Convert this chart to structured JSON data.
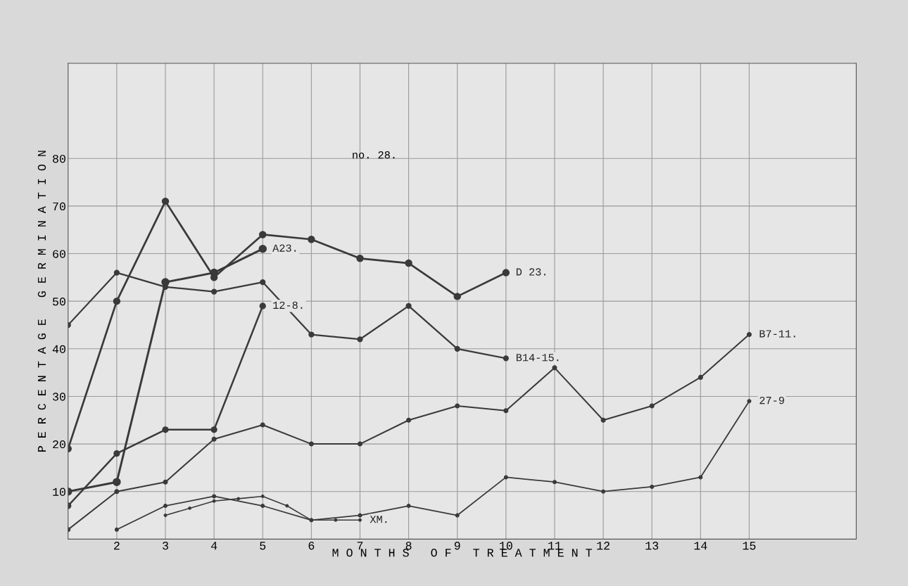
{
  "chart_data": {
    "type": "line",
    "xlabel": "M O N T H S   O F   T R E A T M E N T",
    "ylabel": "P E R C E N T A G E   G E R M I N A T I O N",
    "annotations": [
      "no. 28."
    ],
    "xlim": [
      1,
      17.2
    ],
    "ylim": [
      0,
      100
    ],
    "xticks": [
      2,
      3,
      4,
      5,
      6,
      7,
      8,
      9,
      10,
      11,
      12,
      13,
      14,
      15
    ],
    "yticks": [
      10,
      20,
      30,
      40,
      50,
      60,
      70,
      80
    ],
    "grid": true,
    "marker": "circle",
    "line_style": "solid",
    "series": [
      {
        "name": "A23.",
        "color": "#3a3a3a",
        "x": [
          1,
          2,
          3,
          4,
          5
        ],
        "values": [
          10,
          12,
          54,
          56,
          61
        ]
      },
      {
        "name": "D 23.",
        "color": "#3a3a3a",
        "x": [
          1,
          2,
          3,
          4,
          5,
          6,
          7,
          8,
          9,
          10
        ],
        "values": [
          19,
          50,
          71,
          55,
          64,
          63,
          59,
          58,
          51,
          56
        ]
      },
      {
        "name": "12-8.",
        "color": "#3a3a3a",
        "x": [
          1,
          2,
          3,
          4,
          5
        ],
        "values": [
          7,
          18,
          23,
          23,
          49
        ]
      },
      {
        "name": "B14-15.",
        "color": "#3a3a3a",
        "x": [
          1,
          2,
          3,
          4,
          5,
          6,
          7,
          8,
          9,
          10
        ],
        "values": [
          45,
          56,
          53,
          52,
          54,
          43,
          42,
          49,
          40,
          38
        ]
      },
      {
        "name": "B7-11.",
        "color": "#3a3a3a",
        "x": [
          1,
          2,
          3,
          4,
          5,
          6,
          7,
          8,
          9,
          10,
          11,
          12,
          13,
          14,
          15
        ],
        "values": [
          2,
          10,
          12,
          21,
          24,
          20,
          20,
          25,
          28,
          27,
          36,
          25,
          28,
          34,
          43
        ]
      },
      {
        "name": "27-9",
        "color": "#3a3a3a",
        "x": [
          2,
          3,
          4,
          5,
          6,
          7,
          8,
          9,
          10,
          11,
          12,
          13,
          14,
          15
        ],
        "values": [
          2,
          7,
          9,
          7,
          4,
          5,
          7,
          5,
          13,
          12,
          10,
          11,
          13,
          29
        ]
      },
      {
        "name": "XM.",
        "color": "#3a3a3a",
        "x": [
          3,
          3.5,
          4,
          4.5,
          5,
          5.5,
          6,
          6.5,
          7
        ],
        "values": [
          5,
          6.5,
          8,
          8.5,
          9,
          7,
          4,
          4,
          4
        ]
      }
    ]
  }
}
